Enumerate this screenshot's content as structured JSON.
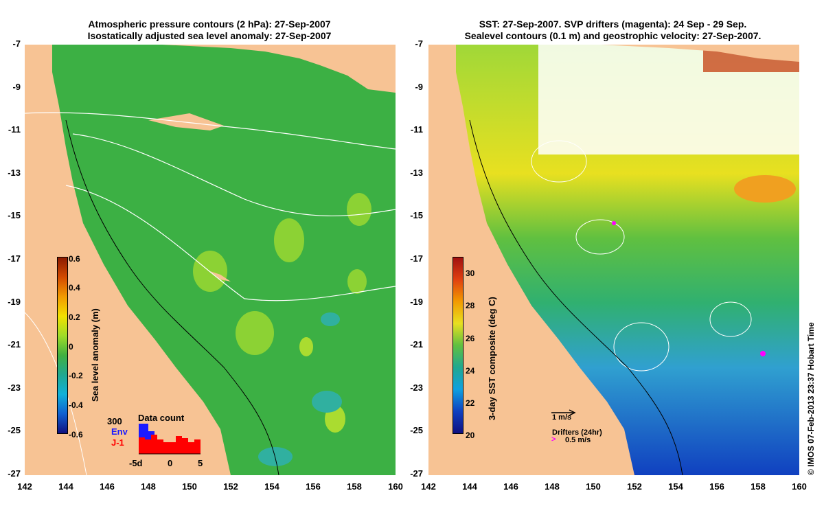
{
  "left_panel": {
    "title_line1": "Atmospheric pressure contours (2 hPa): 27-Sep-2007",
    "title_line2": "Isostatically adjusted sea level anomaly: 27-Sep-2007",
    "colorbar_label": "Sea level anomaly (m)",
    "colorbar_ticks": [
      "0.6",
      "0.4",
      "0.2",
      "0",
      "-0.2",
      "-0.4",
      "-0.6"
    ],
    "inset": {
      "label_300": "300",
      "label_env": "Env",
      "label_j1": "J-1",
      "title": "Data count",
      "tick_left": "-5d",
      "tick_mid": "0",
      "tick_right": "5"
    }
  },
  "right_panel": {
    "title_line1": "SST: 27-Sep-2007. SVP drifters (magenta): 24 Sep - 29 Sep.",
    "title_line2": "Sealevel contours (0.1 m) and geostrophic velocity: 27-Sep-2007.",
    "colorbar_label": "3-day SST composite (deg C)",
    "colorbar_ticks": [
      "30",
      "28",
      "26",
      "24",
      "22",
      "20"
    ],
    "scale_label": "1 m/s",
    "drifters_label": "Drifters (24hr)",
    "drifter_speed": "0.5 m/s",
    "side_text": "© IMOS 07-Feb-2013 23:37 Hobart Time"
  },
  "axes": {
    "y_ticks": [
      "-7",
      "-9",
      "-11",
      "-13",
      "-15",
      "-17",
      "-19",
      "-21",
      "-23",
      "-25",
      "-27"
    ],
    "x_ticks": [
      "142",
      "144",
      "146",
      "148",
      "150",
      "152",
      "154",
      "156",
      "158",
      "160"
    ]
  },
  "colors": {
    "land": "#f7c394",
    "ocean_sla": "#3cb044",
    "sst_warm": "#e8e020",
    "sst_cool": "#1a70d0",
    "contour": "#ffffff",
    "drifter": "#ff00ff",
    "env": "#1a1aff",
    "j1": "#ff0000"
  }
}
